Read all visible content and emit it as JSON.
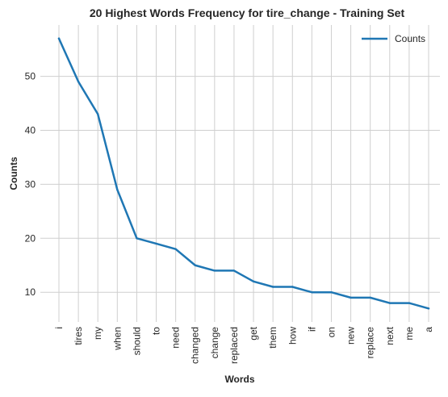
{
  "chart_data": {
    "type": "line",
    "title": "20 Highest Words Frequency for tire_change - Training Set",
    "xlabel": "Words",
    "ylabel": "Counts",
    "categories": [
      "i",
      "tires",
      "my",
      "when",
      "should",
      "to",
      "need",
      "changed",
      "change",
      "replaced",
      "get",
      "them",
      "how",
      "if",
      "on",
      "new",
      "replace",
      "next",
      "me",
      "a"
    ],
    "series": [
      {
        "name": "Counts",
        "color": "#1f77b4",
        "values": [
          57,
          49,
          43,
          29,
          20,
          19,
          18,
          15,
          14,
          14,
          12,
          11,
          11,
          10,
          10,
          9,
          9,
          8,
          8,
          7
        ]
      }
    ],
    "ylim": [
      4.5,
      59.5
    ],
    "yticks": [
      10,
      20,
      30,
      40,
      50
    ],
    "grid": true,
    "legend": "top-right"
  }
}
